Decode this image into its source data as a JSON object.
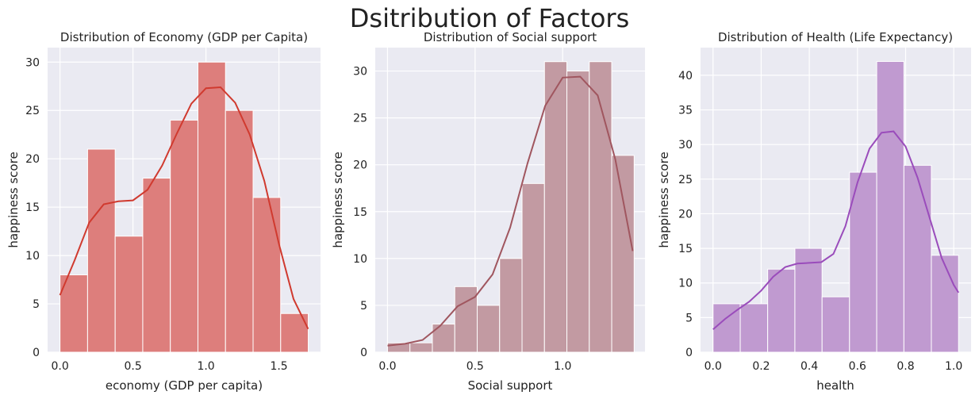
{
  "figure_title": "Dsitribution of Factors",
  "chart_data": [
    {
      "type": "bar",
      "title": "Distribution of Economy (GDP per Capita)",
      "xlabel": "economy (GDP per capita)",
      "ylabel": "happiness score",
      "xlim": [
        -0.085,
        1.785
      ],
      "ylim": [
        0,
        31.5
      ],
      "xticks": [
        0.0,
        0.5,
        1.0,
        1.5
      ],
      "xtick_labels": [
        "0.0",
        "0.5",
        "1.0",
        "1.5"
      ],
      "yticks": [
        0,
        5,
        10,
        15,
        20,
        25,
        30
      ],
      "ytick_labels": [
        "0",
        "5",
        "10",
        "15",
        "20",
        "25",
        "30"
      ],
      "bin_edges": [
        0.0,
        0.189,
        0.378,
        0.567,
        0.756,
        0.945,
        1.134,
        1.323,
        1.512,
        1.701
      ],
      "values": [
        8,
        21,
        12,
        18,
        24,
        30,
        25,
        16,
        4
      ],
      "kde_x": [
        0.0,
        0.1,
        0.2,
        0.3,
        0.4,
        0.5,
        0.6,
        0.7,
        0.8,
        0.9,
        1.0,
        1.1,
        1.2,
        1.3,
        1.4,
        1.5,
        1.6,
        1.7
      ],
      "kde_y": [
        5.9,
        9.5,
        13.4,
        15.3,
        15.6,
        15.7,
        16.8,
        19.3,
        22.6,
        25.7,
        27.3,
        27.4,
        25.8,
        22.5,
        17.7,
        11.2,
        5.5,
        2.4
      ],
      "bar_color": "#dd7e7c",
      "line_color": "#d03a2f",
      "grid": true
    },
    {
      "type": "bar",
      "title": "Distribution of Social support",
      "xlabel": "Social support",
      "ylabel": "happiness score",
      "xlim": [
        -0.07,
        1.47
      ],
      "ylim": [
        0,
        32.5
      ],
      "xticks": [
        0.0,
        0.5,
        1.0
      ],
      "xtick_labels": [
        "0.0",
        "0.5",
        "1.0"
      ],
      "yticks": [
        0,
        5,
        10,
        15,
        20,
        25,
        30
      ],
      "ytick_labels": [
        "0",
        "5",
        "10",
        "15",
        "20",
        "25",
        "30"
      ],
      "bin_edges": [
        0.0,
        0.128,
        0.256,
        0.384,
        0.512,
        0.64,
        0.768,
        0.896,
        1.024,
        1.152,
        1.28,
        1.408
      ],
      "values": [
        1,
        1,
        3,
        7,
        5,
        10,
        18,
        31,
        30,
        31,
        21
      ],
      "kde_x": [
        0.0,
        0.1,
        0.2,
        0.3,
        0.4,
        0.5,
        0.6,
        0.7,
        0.8,
        0.9,
        1.0,
        1.1,
        1.2,
        1.3,
        1.4
      ],
      "kde_y": [
        0.7,
        0.9,
        1.3,
        2.8,
        4.9,
        5.9,
        8.3,
        13.3,
        20.2,
        26.3,
        29.3,
        29.4,
        27.4,
        20.6,
        10.8
      ],
      "bar_color": "#c29aa2",
      "line_color": "#a0565f",
      "grid": true
    },
    {
      "type": "bar",
      "title": "Distribution of Health (Life Expectancy)",
      "xlabel": "health",
      "ylabel": "happiness score",
      "xlim": [
        -0.052,
        1.072
      ],
      "ylim": [
        0,
        44
      ],
      "xticks": [
        0.0,
        0.2,
        0.4,
        0.6,
        0.8,
        1.0
      ],
      "xtick_labels": [
        "0.0",
        "0.2",
        "0.4",
        "0.6",
        "0.8",
        "1.0"
      ],
      "yticks": [
        0,
        5,
        10,
        15,
        20,
        25,
        30,
        35,
        40
      ],
      "ytick_labels": [
        "0",
        "5",
        "10",
        "15",
        "20",
        "25",
        "30",
        "35",
        "40"
      ],
      "bin_edges": [
        0.0,
        0.113,
        0.227,
        0.34,
        0.453,
        0.567,
        0.68,
        0.793,
        0.907,
        1.02
      ],
      "values": [
        7,
        7,
        12,
        15,
        8,
        26,
        42,
        27,
        14
      ],
      "kde_x": [
        0.0,
        0.05,
        0.1,
        0.15,
        0.2,
        0.25,
        0.3,
        0.35,
        0.4,
        0.45,
        0.5,
        0.55,
        0.6,
        0.65,
        0.7,
        0.75,
        0.8,
        0.85,
        0.9,
        0.95,
        1.0,
        1.02
      ],
      "kde_y": [
        3.3,
        4.8,
        6.1,
        7.3,
        8.9,
        10.9,
        12.3,
        12.8,
        12.9,
        13.0,
        14.2,
        18.2,
        24.5,
        29.4,
        31.7,
        31.9,
        29.7,
        25.2,
        19.4,
        13.6,
        9.7,
        8.6
      ],
      "bar_color": "#c09ad0",
      "line_color": "#9a4cbb",
      "grid": true
    }
  ]
}
